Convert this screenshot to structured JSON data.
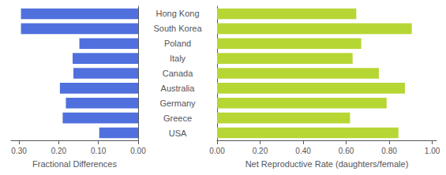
{
  "chart_data": [
    {
      "type": "bar",
      "orientation": "horizontal",
      "categories": [
        "Hong Kong",
        "South Korea",
        "Poland",
        "Italy",
        "Canada",
        "Australia",
        "Germany",
        "Greece",
        "USA"
      ],
      "values": [
        0.295,
        0.295,
        0.148,
        0.165,
        0.163,
        0.197,
        0.182,
        0.19,
        0.098
      ],
      "xlabel": "Fractional Differences",
      "xlim": [
        0.32,
        0.0
      ],
      "xticks": [
        {
          "value": 0.3,
          "label": "0.30"
        },
        {
          "value": 0.2,
          "label": "0.20"
        },
        {
          "value": 0.1,
          "label": "0.10"
        },
        {
          "value": 0.0,
          "label": "0.00"
        }
      ],
      "grid": false
    },
    {
      "type": "bar",
      "orientation": "horizontal",
      "categories": [
        "Hong Kong",
        "South Korea",
        "Poland",
        "Italy",
        "Canada",
        "Australia",
        "Germany",
        "Greece",
        "USA"
      ],
      "values": [
        0.647,
        0.905,
        0.67,
        0.63,
        0.752,
        0.873,
        0.788,
        0.618,
        0.843
      ],
      "xlabel": "Net Reproductive Rate (daughters/female)",
      "xlim": [
        0.0,
        1.02
      ],
      "xticks": [
        {
          "value": 0.0,
          "label": "0.00"
        },
        {
          "value": 0.2,
          "label": "0.20"
        },
        {
          "value": 0.4,
          "label": "0.40"
        },
        {
          "value": 0.6,
          "label": "0.60"
        },
        {
          "value": 0.8,
          "label": "0.80"
        },
        {
          "value": 1.0,
          "label": "1.00"
        }
      ],
      "grid": false,
      "tick_labels": "x"
    }
  ]
}
